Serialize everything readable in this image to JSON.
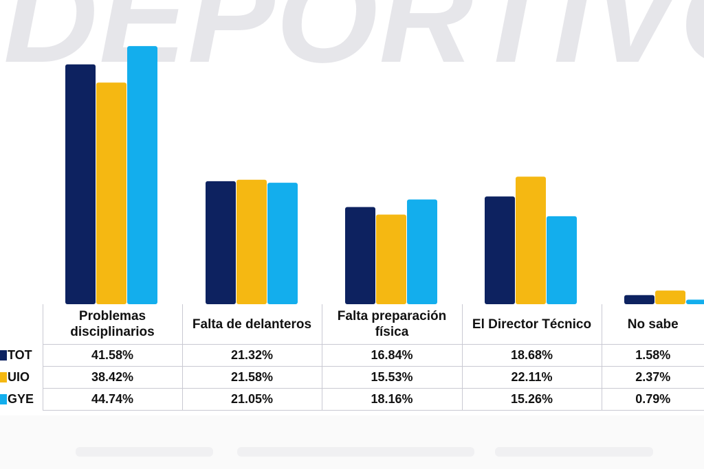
{
  "watermark": "DEPORTIVO",
  "chart_data": {
    "type": "bar",
    "categories": [
      "Problemas disciplinarios",
      "Falta de delanteros",
      "Falta preparación física",
      "El Director Técnico",
      "No sabe"
    ],
    "series": [
      {
        "name": "TOT",
        "color": "#0d2260",
        "values": [
          41.58,
          21.32,
          16.84,
          18.68,
          1.58
        ]
      },
      {
        "name": "UIO",
        "color": "#f5b812",
        "values": [
          38.42,
          21.58,
          15.53,
          22.11,
          2.37
        ]
      },
      {
        "name": "GYE",
        "color": "#13aeed",
        "values": [
          44.74,
          21.05,
          18.16,
          15.26,
          0.79
        ]
      }
    ],
    "ylim": [
      0,
      45
    ],
    "grid": false,
    "legend": "table-left"
  },
  "table": {
    "rows": [
      {
        "label": "TOT",
        "color": "#0d2260",
        "cells": [
          "41.58%",
          "21.32%",
          "16.84%",
          "18.68%",
          "1.58%"
        ]
      },
      {
        "label": "UIO",
        "color": "#f5b812",
        "cells": [
          "38.42%",
          "21.58%",
          "15.53%",
          "22.11%",
          "2.37%"
        ]
      },
      {
        "label": "GYE",
        "color": "#13aeed",
        "cells": [
          "44.74%",
          "21.05%",
          "18.16%",
          "15.26%",
          "0.79%"
        ]
      }
    ]
  }
}
